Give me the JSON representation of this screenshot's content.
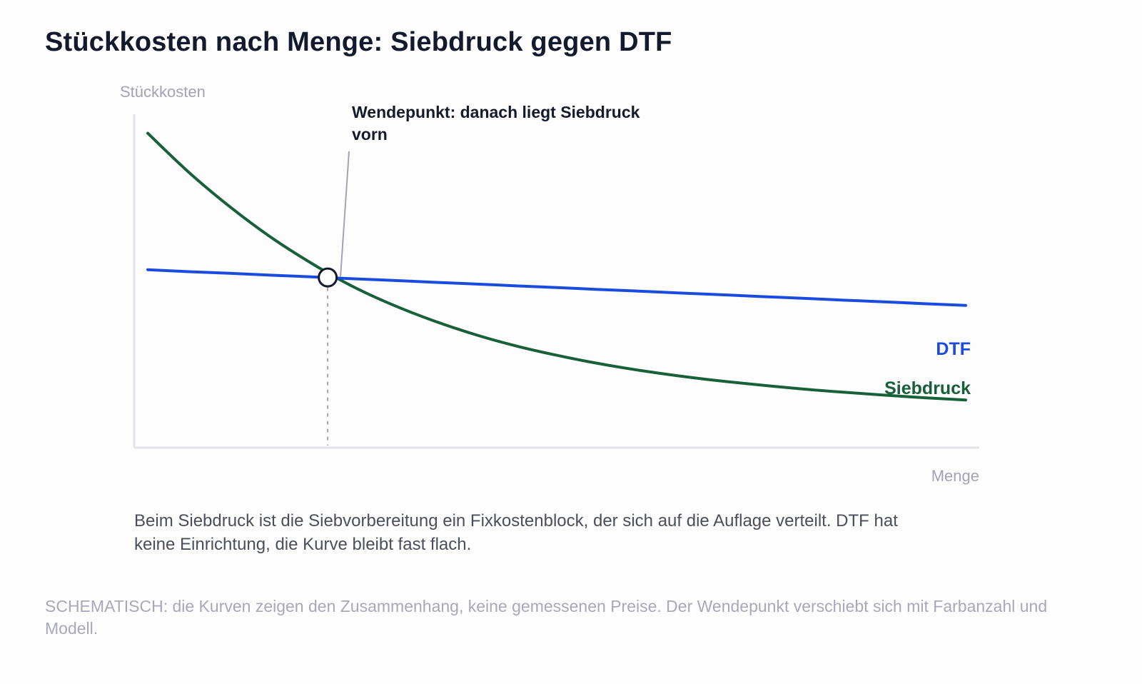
{
  "chart_data": {
    "type": "line",
    "title": "Stückkosten nach Menge: Siebdruck gegen DTF",
    "ylabel": "Stückkosten",
    "xlabel": "Menge",
    "xlim": [
      0,
      100
    ],
    "ylim": [
      0,
      100
    ],
    "grid": false,
    "legend": "direct labels at right end of lines",
    "x": [
      0,
      5,
      10,
      15,
      20,
      25,
      30,
      35,
      40,
      45,
      50,
      55,
      60,
      65,
      70,
      75,
      80,
      85,
      90,
      95,
      100
    ],
    "series": [
      {
        "name": "Siebdruck",
        "color": "#17603a",
        "values": [
          92.6,
          80.6,
          70.0,
          60.6,
          52.5,
          45.4,
          39.6,
          34.7,
          30.5,
          27.0,
          24.1,
          21.6,
          19.5,
          17.7,
          16.2,
          14.9,
          13.7,
          12.7,
          11.8,
          11.0,
          10.3
        ]
      },
      {
        "name": "DTF",
        "color": "#1a4be0",
        "values": [
          50.5,
          49.9,
          49.4,
          48.8,
          48.3,
          47.7,
          47.2,
          46.6,
          46.1,
          45.5,
          45.0,
          44.4,
          43.9,
          43.3,
          42.8,
          42.2,
          41.7,
          41.1,
          40.6,
          40.0,
          39.5
        ]
      }
    ],
    "annotations": [
      {
        "text_lines": [
          "Wendepunkt: danach liegt Siebdruck",
          "vorn"
        ],
        "x": 22,
        "y": 48.1,
        "marker": "hollow circle with dashed drop line"
      }
    ]
  },
  "caption": "Beim Siebdruck ist die Siebvorbereitung ein Fixkostenblock, der sich auf die Auflage verteilt. DTF hat keine Einrichtung, die Kurve bleibt fast flach.",
  "note": "SCHEMATISCH: die Kurven zeigen den Zusammenhang, keine gemessenen Preise. Der Wendepunkt verschiebt sich mit Farbanzahl und Modell.",
  "colors": {
    "axis": "#e3e3ea",
    "marker_fill": "#ffffff",
    "marker_stroke": "#141a2e",
    "dashed_line": "#a3a3b5"
  }
}
